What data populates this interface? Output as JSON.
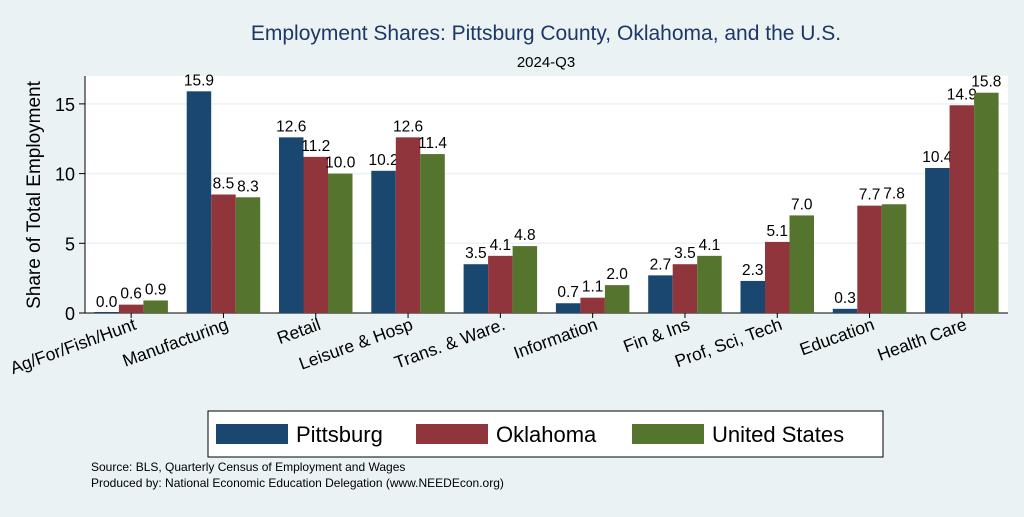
{
  "chart_data": {
    "type": "bar",
    "title": "Employment Shares: Pittsburg County, Oklahoma, and the U.S.",
    "subtitle": "2024-Q3",
    "ylabel": "Share of Total Employment",
    "xlabel": "",
    "ylim": [
      0,
      17
    ],
    "yticks": [
      0,
      5,
      10,
      15
    ],
    "grid": true,
    "legend_position": "bottom",
    "categories": [
      "Ag/For/Fish/Hunt",
      "Manufacturing",
      "Retail",
      "Leisure & Hosp",
      "Trans. & Ware.",
      "Information",
      "Fin & Ins",
      "Prof, Sci, Tech",
      "Education",
      "Health Care"
    ],
    "series": [
      {
        "name": "Pittsburg",
        "color": "#1a476f",
        "values": [
          0.0,
          15.9,
          12.6,
          10.2,
          3.5,
          0.7,
          2.7,
          2.3,
          0.3,
          10.4
        ]
      },
      {
        "name": "Oklahoma",
        "color": "#90353b",
        "values": [
          0.6,
          8.5,
          11.2,
          12.6,
          4.1,
          1.1,
          3.5,
          5.1,
          7.7,
          14.9
        ]
      },
      {
        "name": "United States",
        "color": "#55752f",
        "values": [
          0.9,
          8.3,
          10.0,
          11.4,
          4.8,
          2.0,
          4.1,
          7.0,
          7.8,
          15.8
        ]
      }
    ],
    "notes": [
      "Source: BLS, Quarterly Census of Employment and Wages",
      "Produced by: National Economic Education Delegation (www.NEEDEcon.org)"
    ]
  },
  "colors": {
    "background": "#eaf2f3",
    "plot_background": "#ffffff",
    "grid": "#eaf2f3",
    "title": "#1e3765"
  }
}
